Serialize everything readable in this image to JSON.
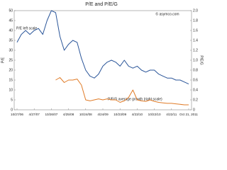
{
  "chart_data": {
    "type": "line",
    "title": "P/E and P/E/G",
    "watermark": "© asymco.com",
    "y_label": "P/E",
    "y2_label": "P/E/G",
    "annotations": [
      "P/E left scale",
      "P/E/G average growth (right scale)"
    ],
    "categories": [
      "10/27/06",
      null,
      null,
      null,
      "4/27/07",
      null,
      null,
      null,
      "10/26/07",
      null,
      null,
      null,
      "4/25/08",
      null,
      null,
      null,
      "10/24/08",
      null,
      null,
      null,
      "4/24/09",
      null,
      null,
      null,
      "10/23/09",
      null,
      null,
      null,
      "4/23/10",
      null,
      null,
      null,
      "10/22/10",
      null,
      null,
      null,
      "4/22/11",
      null,
      null,
      null,
      "Oct 21, 2011"
    ],
    "series": [
      {
        "name": "P/E",
        "color": "#2a5599",
        "values": [
          34,
          38,
          40,
          38,
          40,
          41,
          38,
          45,
          50,
          49,
          37,
          30,
          33,
          35,
          34,
          26,
          20,
          17,
          16,
          18,
          22,
          24,
          25,
          24,
          22,
          25,
          22,
          21,
          22,
          20,
          19,
          20,
          20,
          18,
          17,
          16,
          16,
          15,
          15,
          14,
          13
        ]
      },
      {
        "name": "P/E/G",
        "color": "#e07b27",
        "axis": "y2",
        "values": [
          null,
          null,
          null,
          null,
          null,
          null,
          null,
          null,
          null,
          0.6,
          0.65,
          0.55,
          0.6,
          0.6,
          0.62,
          0.5,
          0.2,
          0.18,
          0.2,
          0.22,
          0.2,
          0.22,
          0.2,
          0.2,
          0.15,
          0.18,
          0.25,
          0.4,
          0.2,
          0.18,
          0.17,
          0.2,
          0.17,
          0.15,
          0.14,
          0.13,
          0.13,
          0.12,
          0.11,
          0.1,
          0.1
        ]
      }
    ],
    "ylim": [
      0,
      50
    ],
    "yticks": [
      0,
      5,
      10,
      15,
      20,
      25,
      30,
      35,
      40,
      45,
      50
    ],
    "y2lim": [
      0,
      2
    ],
    "y2ticks": [
      0,
      0.2,
      0.4,
      0.6,
      0.8,
      {
        "value": 1,
        "label": "1.0"
      },
      1.2,
      1.4,
      1.6,
      1.8,
      {
        "value": 2,
        "label": "2.0"
      }
    ],
    "grid": false
  }
}
